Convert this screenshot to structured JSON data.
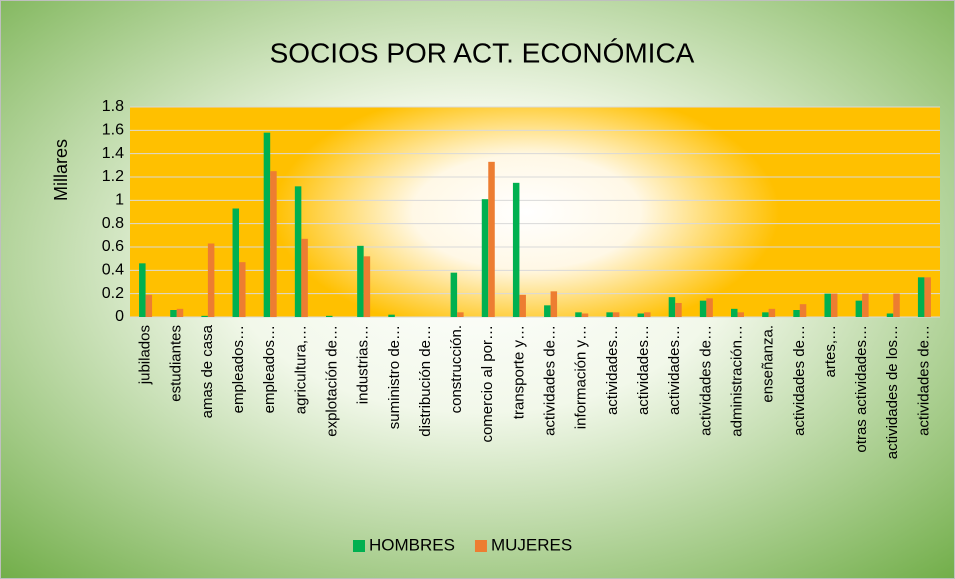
{
  "chart_data": {
    "type": "bar",
    "title": "SOCIOS POR ACT. ECONÓMICA",
    "ylabel": "Millares",
    "categories": [
      "jubilados",
      "estudiantes",
      "amas de casa",
      "empleados…",
      "empleados…",
      "agricultura,…",
      "explotación de…",
      "industrias…",
      "suministro de…",
      "distribución de…",
      "construcción.",
      "comercio al por…",
      "transporte y…",
      "actividades de…",
      "información y…",
      "actividades…",
      "actividades…",
      "actividades…",
      "actividades de…",
      "administración…",
      "enseñanza.",
      "actividades de…",
      "artes,…",
      "otras actividades…",
      "actividades de los…",
      "actividades de…"
    ],
    "series": [
      {
        "name": "HOMBRES",
        "color": "#00b050",
        "values": [
          0.46,
          0.06,
          0.01,
          0.93,
          1.58,
          1.12,
          0.01,
          0.61,
          0.02,
          0,
          0.38,
          1.01,
          1.15,
          0.1,
          0.04,
          0.04,
          0.03,
          0.17,
          0.14,
          0.07,
          0.04,
          0.06,
          0.2,
          0.14,
          0.03,
          0.34
        ]
      },
      {
        "name": "MUJERES",
        "color": "#ed7d31",
        "values": [
          0.19,
          0.07,
          0.63,
          0.47,
          1.25,
          0.67,
          0,
          0.52,
          0,
          0,
          0.04,
          1.33,
          0.19,
          0.22,
          0.03,
          0.04,
          0.04,
          0.12,
          0.16,
          0.04,
          0.07,
          0.11,
          0.2,
          0.2,
          0.2,
          0.34
        ]
      }
    ],
    "ylim": [
      0,
      1.8
    ],
    "yticks": [
      0,
      0.2,
      0.4,
      0.6,
      0.8,
      1,
      1.2,
      1.4,
      1.6,
      1.8
    ],
    "grid": true,
    "legend": "bottom"
  }
}
